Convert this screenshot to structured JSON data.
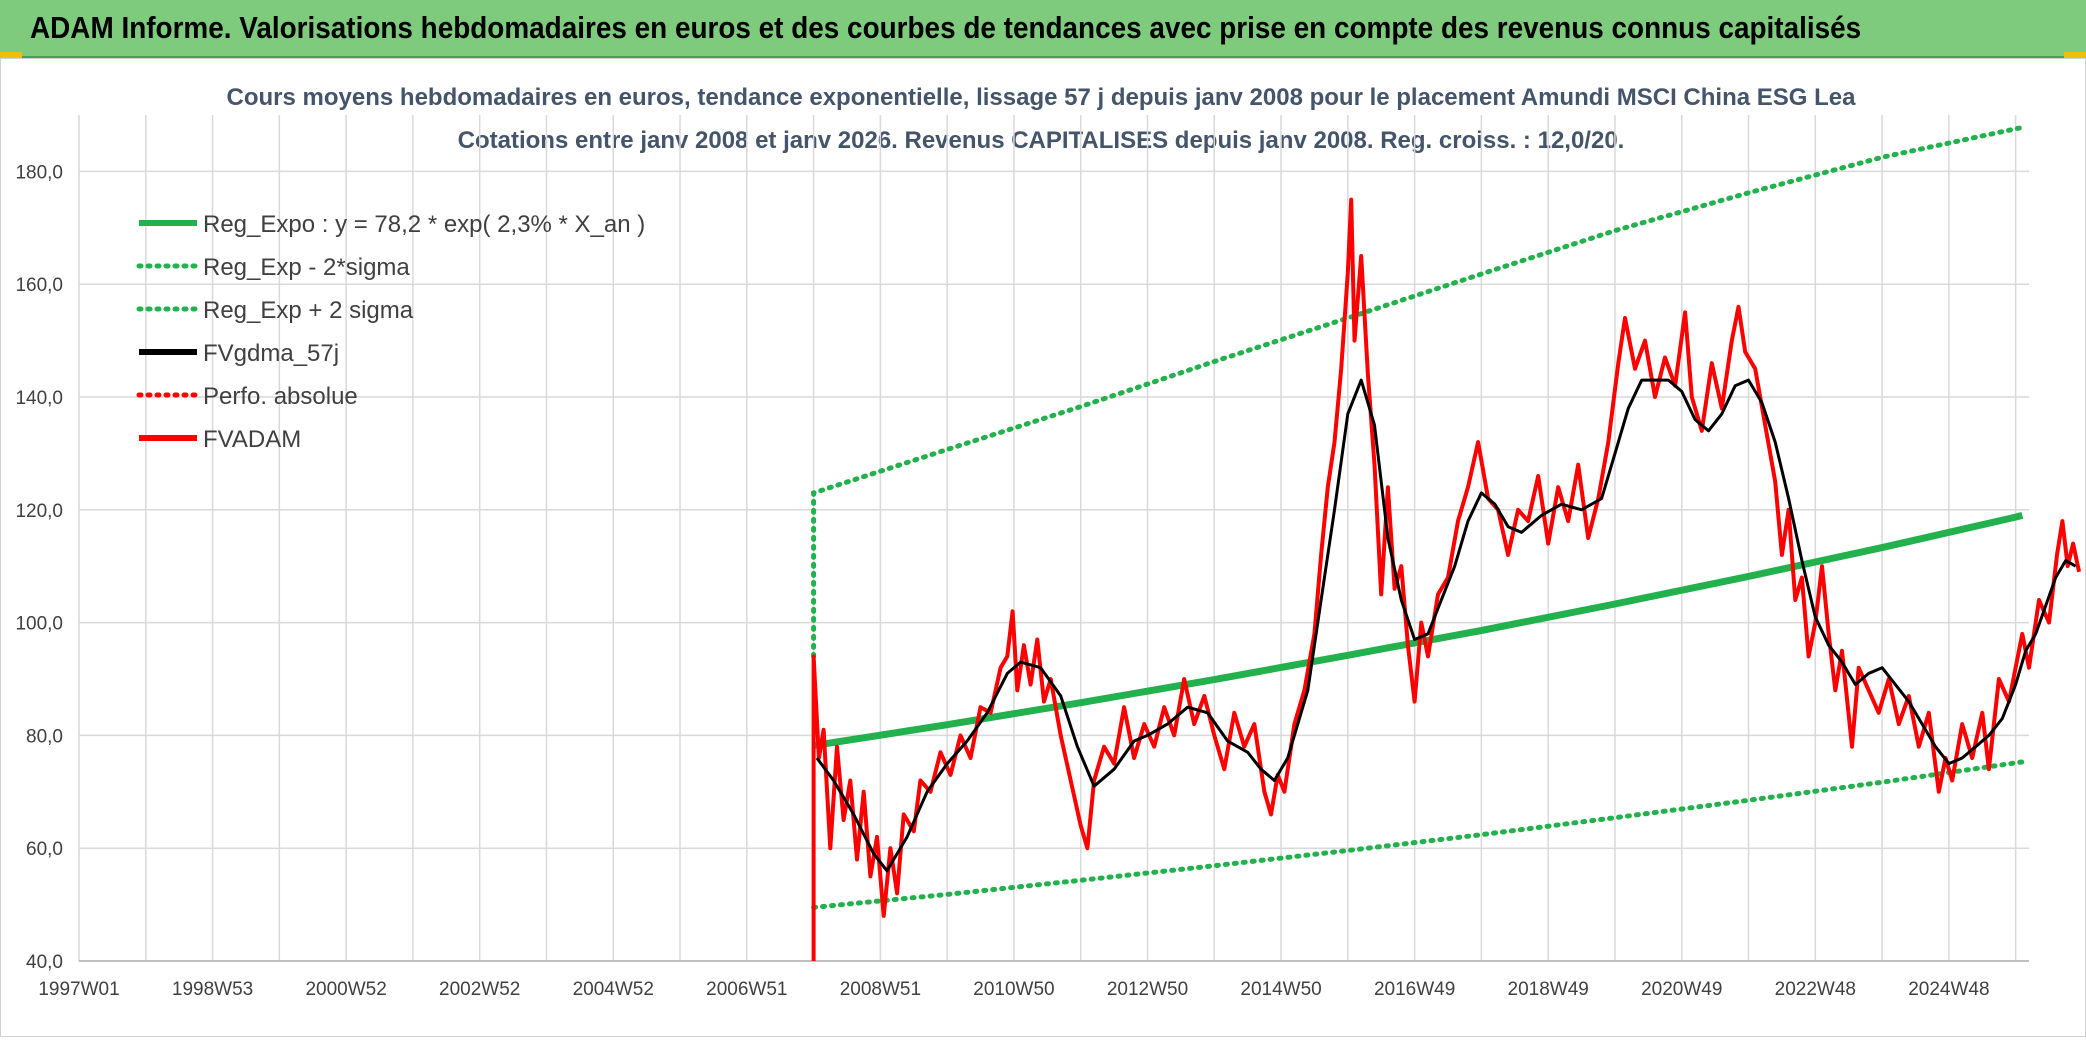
{
  "banner": {
    "title": "ADAM Informe. Valorisations hebdomadaires en euros et des courbes de tendances avec prise en compte des revenus connus capitalisés"
  },
  "chart_data": {
    "type": "line",
    "title": "Cours moyens hebdomadaires en euros, tendance exponentielle, lissage 57 j depuis janv 2008 pour le placement Amundi MSCI China ESG Lea",
    "subtitle": "Cotations entre janv 2008 et janv 2026. Revenus CAPITALISES depuis janv 2008. Reg. croiss. : 12,0/20.",
    "xlabel": "",
    "ylabel": "",
    "ylim": [
      40,
      190
    ],
    "xlim": [
      1997.0,
      2026.2
    ],
    "y_ticks": [
      "40,0",
      "60,0",
      "80,0",
      "100,0",
      "120,0",
      "140,0",
      "160,0",
      "180,0"
    ],
    "x_ticks": [
      {
        "label": "1997W01",
        "x": 1997.0
      },
      {
        "label": "1998W53",
        "x": 1999.0
      },
      {
        "label": "2000W52",
        "x": 2001.0
      },
      {
        "label": "2002W52",
        "x": 2003.0
      },
      {
        "label": "2004W52",
        "x": 2005.0
      },
      {
        "label": "2006W51",
        "x": 2007.0
      },
      {
        "label": "2008W51",
        "x": 2009.0
      },
      {
        "label": "2010W50",
        "x": 2011.0
      },
      {
        "label": "2012W50",
        "x": 2013.0
      },
      {
        "label": "2014W50",
        "x": 2015.0
      },
      {
        "label": "2016W49",
        "x": 2017.0
      },
      {
        "label": "2018W49",
        "x": 2019.0
      },
      {
        "label": "2020W49",
        "x": 2021.0
      },
      {
        "label": "2022W48",
        "x": 2023.0
      },
      {
        "label": "2024W48",
        "x": 2025.0
      }
    ],
    "grid": true,
    "legend_position": "top-left",
    "colors": {
      "green": "#22b14c",
      "black": "#000000",
      "red": "#ff0000"
    },
    "series": [
      {
        "name": "Reg_Expo : y = 78,2 * exp( 2,3% *  X_an )",
        "style": "solid-thick",
        "color": "#22b14c",
        "points": [
          [
            2008.0,
            78.2
          ],
          [
            2010.0,
            81.9
          ],
          [
            2012.0,
            85.8
          ],
          [
            2014.0,
            89.9
          ],
          [
            2016.0,
            94.2
          ],
          [
            2018.0,
            98.6
          ],
          [
            2020.0,
            103.3
          ],
          [
            2022.0,
            108.2
          ],
          [
            2024.0,
            113.3
          ],
          [
            2026.0,
            118.7
          ],
          [
            2026.1,
            119.0
          ]
        ]
      },
      {
        "name": "Reg_Exp - 2*sigma",
        "style": "dotted",
        "color": "#22b14c",
        "points": [
          [
            2008.0,
            49.5
          ],
          [
            2010.0,
            51.8
          ],
          [
            2012.0,
            54.3
          ],
          [
            2014.0,
            56.9
          ],
          [
            2016.0,
            59.6
          ],
          [
            2018.0,
            62.4
          ],
          [
            2020.0,
            65.4
          ],
          [
            2022.0,
            68.5
          ],
          [
            2024.0,
            71.7
          ],
          [
            2026.1,
            75.3
          ]
        ]
      },
      {
        "name": "Reg_Exp + 2 sigma",
        "style": "dotted",
        "color": "#22b14c",
        "points": [
          [
            2008.0,
            94.0
          ],
          [
            2008.0,
            123.0
          ],
          [
            2010.0,
            130.7
          ],
          [
            2012.0,
            138.3
          ],
          [
            2014.0,
            146.3
          ],
          [
            2016.0,
            154.0
          ],
          [
            2018.0,
            161.8
          ],
          [
            2020.0,
            169.5
          ],
          [
            2022.0,
            176.2
          ],
          [
            2024.0,
            182.5
          ],
          [
            2026.1,
            187.8
          ]
        ]
      },
      {
        "name": "FVgdma_57j",
        "style": "solid",
        "color": "#000000",
        "points": [
          [
            2008.05,
            76
          ],
          [
            2008.3,
            72
          ],
          [
            2008.6,
            66
          ],
          [
            2008.9,
            59
          ],
          [
            2009.1,
            56
          ],
          [
            2009.4,
            62
          ],
          [
            2009.7,
            70
          ],
          [
            2010.0,
            75
          ],
          [
            2010.3,
            79
          ],
          [
            2010.6,
            84
          ],
          [
            2010.9,
            91
          ],
          [
            2011.1,
            93
          ],
          [
            2011.4,
            92
          ],
          [
            2011.7,
            87
          ],
          [
            2011.95,
            78
          ],
          [
            2012.2,
            71
          ],
          [
            2012.5,
            74
          ],
          [
            2012.8,
            79
          ],
          [
            2013.0,
            80
          ],
          [
            2013.3,
            82
          ],
          [
            2013.6,
            85
          ],
          [
            2013.9,
            84
          ],
          [
            2014.2,
            79
          ],
          [
            2014.5,
            77
          ],
          [
            2014.7,
            74
          ],
          [
            2014.9,
            72
          ],
          [
            2015.1,
            76
          ],
          [
            2015.4,
            88
          ],
          [
            2015.6,
            104
          ],
          [
            2015.8,
            120
          ],
          [
            2016.0,
            137
          ],
          [
            2016.2,
            143
          ],
          [
            2016.4,
            135
          ],
          [
            2016.6,
            115
          ],
          [
            2016.8,
            104
          ],
          [
            2017.0,
            97
          ],
          [
            2017.2,
            98
          ],
          [
            2017.4,
            104
          ],
          [
            2017.6,
            110
          ],
          [
            2017.8,
            118
          ],
          [
            2018.0,
            123
          ],
          [
            2018.2,
            121
          ],
          [
            2018.4,
            117
          ],
          [
            2018.6,
            116
          ],
          [
            2018.9,
            119
          ],
          [
            2019.2,
            121
          ],
          [
            2019.5,
            120
          ],
          [
            2019.8,
            122
          ],
          [
            2020.0,
            130
          ],
          [
            2020.2,
            138
          ],
          [
            2020.4,
            143
          ],
          [
            2020.6,
            143
          ],
          [
            2020.8,
            143
          ],
          [
            2021.0,
            141
          ],
          [
            2021.2,
            136
          ],
          [
            2021.4,
            134
          ],
          [
            2021.6,
            137
          ],
          [
            2021.8,
            142
          ],
          [
            2022.0,
            143
          ],
          [
            2022.2,
            139
          ],
          [
            2022.4,
            132
          ],
          [
            2022.6,
            122
          ],
          [
            2022.8,
            111
          ],
          [
            2023.0,
            101
          ],
          [
            2023.2,
            96
          ],
          [
            2023.4,
            93
          ],
          [
            2023.6,
            89
          ],
          [
            2023.8,
            91
          ],
          [
            2024.0,
            92
          ],
          [
            2024.2,
            89
          ],
          [
            2024.4,
            86
          ],
          [
            2024.6,
            82
          ],
          [
            2024.8,
            78
          ],
          [
            2025.0,
            75
          ],
          [
            2025.2,
            76
          ],
          [
            2025.4,
            78
          ],
          [
            2025.6,
            80
          ],
          [
            2025.8,
            83
          ],
          [
            2026.0,
            89
          ],
          [
            2026.15,
            95
          ],
          [
            2026.3,
            98
          ],
          [
            2026.45,
            103
          ],
          [
            2026.6,
            108
          ],
          [
            2026.75,
            111
          ],
          [
            2026.9,
            110
          ]
        ]
      },
      {
        "name": "Perfo. absolue",
        "style": "dotted",
        "color": "#ff0000",
        "points": []
      },
      {
        "name": "FVADAM",
        "style": "solid-thick",
        "color": "#ff0000",
        "points": [
          [
            2008.0,
            40
          ],
          [
            2008.0,
            94
          ],
          [
            2008.08,
            76
          ],
          [
            2008.15,
            81
          ],
          [
            2008.25,
            60
          ],
          [
            2008.35,
            78
          ],
          [
            2008.45,
            65
          ],
          [
            2008.55,
            72
          ],
          [
            2008.65,
            58
          ],
          [
            2008.75,
            70
          ],
          [
            2008.85,
            55
          ],
          [
            2008.95,
            62
          ],
          [
            2009.05,
            48
          ],
          [
            2009.15,
            60
          ],
          [
            2009.25,
            52
          ],
          [
            2009.35,
            66
          ],
          [
            2009.5,
            63
          ],
          [
            2009.6,
            72
          ],
          [
            2009.75,
            70
          ],
          [
            2009.9,
            77
          ],
          [
            2010.05,
            73
          ],
          [
            2010.2,
            80
          ],
          [
            2010.35,
            76
          ],
          [
            2010.5,
            85
          ],
          [
            2010.65,
            84
          ],
          [
            2010.8,
            92
          ],
          [
            2010.9,
            94
          ],
          [
            2010.98,
            102
          ],
          [
            2011.05,
            88
          ],
          [
            2011.15,
            96
          ],
          [
            2011.25,
            89
          ],
          [
            2011.35,
            97
          ],
          [
            2011.45,
            86
          ],
          [
            2011.55,
            90
          ],
          [
            2011.7,
            80
          ],
          [
            2011.85,
            72
          ],
          [
            2012.0,
            64
          ],
          [
            2012.1,
            60
          ],
          [
            2012.2,
            72
          ],
          [
            2012.35,
            78
          ],
          [
            2012.5,
            75
          ],
          [
            2012.65,
            85
          ],
          [
            2012.8,
            76
          ],
          [
            2012.95,
            82
          ],
          [
            2013.1,
            78
          ],
          [
            2013.25,
            85
          ],
          [
            2013.4,
            80
          ],
          [
            2013.55,
            90
          ],
          [
            2013.7,
            82
          ],
          [
            2013.85,
            87
          ],
          [
            2014.0,
            80
          ],
          [
            2014.15,
            74
          ],
          [
            2014.3,
            84
          ],
          [
            2014.45,
            78
          ],
          [
            2014.6,
            82
          ],
          [
            2014.75,
            70
          ],
          [
            2014.85,
            66
          ],
          [
            2014.95,
            73
          ],
          [
            2015.05,
            70
          ],
          [
            2015.2,
            82
          ],
          [
            2015.35,
            88
          ],
          [
            2015.5,
            98
          ],
          [
            2015.6,
            112
          ],
          [
            2015.7,
            124
          ],
          [
            2015.8,
            132
          ],
          [
            2015.9,
            145
          ],
          [
            2016.0,
            162
          ],
          [
            2016.05,
            175
          ],
          [
            2016.1,
            150
          ],
          [
            2016.2,
            165
          ],
          [
            2016.3,
            144
          ],
          [
            2016.4,
            128
          ],
          [
            2016.5,
            105
          ],
          [
            2016.6,
            124
          ],
          [
            2016.7,
            106
          ],
          [
            2016.8,
            110
          ],
          [
            2016.9,
            96
          ],
          [
            2017.0,
            86
          ],
          [
            2017.1,
            100
          ],
          [
            2017.2,
            94
          ],
          [
            2017.35,
            105
          ],
          [
            2017.5,
            108
          ],
          [
            2017.65,
            118
          ],
          [
            2017.8,
            124
          ],
          [
            2017.95,
            132
          ],
          [
            2018.1,
            122
          ],
          [
            2018.25,
            120
          ],
          [
            2018.4,
            112
          ],
          [
            2018.55,
            120
          ],
          [
            2018.7,
            118
          ],
          [
            2018.85,
            126
          ],
          [
            2019.0,
            114
          ],
          [
            2019.15,
            124
          ],
          [
            2019.3,
            118
          ],
          [
            2019.45,
            128
          ],
          [
            2019.6,
            115
          ],
          [
            2019.75,
            122
          ],
          [
            2019.9,
            132
          ],
          [
            2020.05,
            146
          ],
          [
            2020.15,
            154
          ],
          [
            2020.3,
            145
          ],
          [
            2020.45,
            150
          ],
          [
            2020.6,
            140
          ],
          [
            2020.75,
            147
          ],
          [
            2020.9,
            142
          ],
          [
            2021.05,
            155
          ],
          [
            2021.15,
            140
          ],
          [
            2021.3,
            134
          ],
          [
            2021.45,
            146
          ],
          [
            2021.6,
            138
          ],
          [
            2021.75,
            150
          ],
          [
            2021.85,
            156
          ],
          [
            2021.95,
            148
          ],
          [
            2022.1,
            145
          ],
          [
            2022.25,
            135
          ],
          [
            2022.4,
            125
          ],
          [
            2022.5,
            112
          ],
          [
            2022.6,
            120
          ],
          [
            2022.7,
            104
          ],
          [
            2022.8,
            108
          ],
          [
            2022.9,
            94
          ],
          [
            2023.0,
            100
          ],
          [
            2023.1,
            110
          ],
          [
            2023.2,
            98
          ],
          [
            2023.3,
            88
          ],
          [
            2023.4,
            95
          ],
          [
            2023.55,
            78
          ],
          [
            2023.65,
            92
          ],
          [
            2023.8,
            88
          ],
          [
            2023.95,
            84
          ],
          [
            2024.1,
            90
          ],
          [
            2024.25,
            82
          ],
          [
            2024.4,
            87
          ],
          [
            2024.55,
            78
          ],
          [
            2024.7,
            84
          ],
          [
            2024.85,
            70
          ],
          [
            2024.95,
            76
          ],
          [
            2025.05,
            72
          ],
          [
            2025.2,
            82
          ],
          [
            2025.35,
            76
          ],
          [
            2025.5,
            84
          ],
          [
            2025.6,
            74
          ],
          [
            2025.75,
            90
          ],
          [
            2025.9,
            86
          ],
          [
            2026.0,
            92
          ],
          [
            2026.1,
            98
          ],
          [
            2026.2,
            92
          ],
          [
            2026.35,
            104
          ],
          [
            2026.5,
            100
          ],
          [
            2026.62,
            112
          ],
          [
            2026.7,
            118
          ],
          [
            2026.78,
            110
          ],
          [
            2026.86,
            114
          ],
          [
            2026.95,
            109
          ]
        ]
      }
    ]
  }
}
